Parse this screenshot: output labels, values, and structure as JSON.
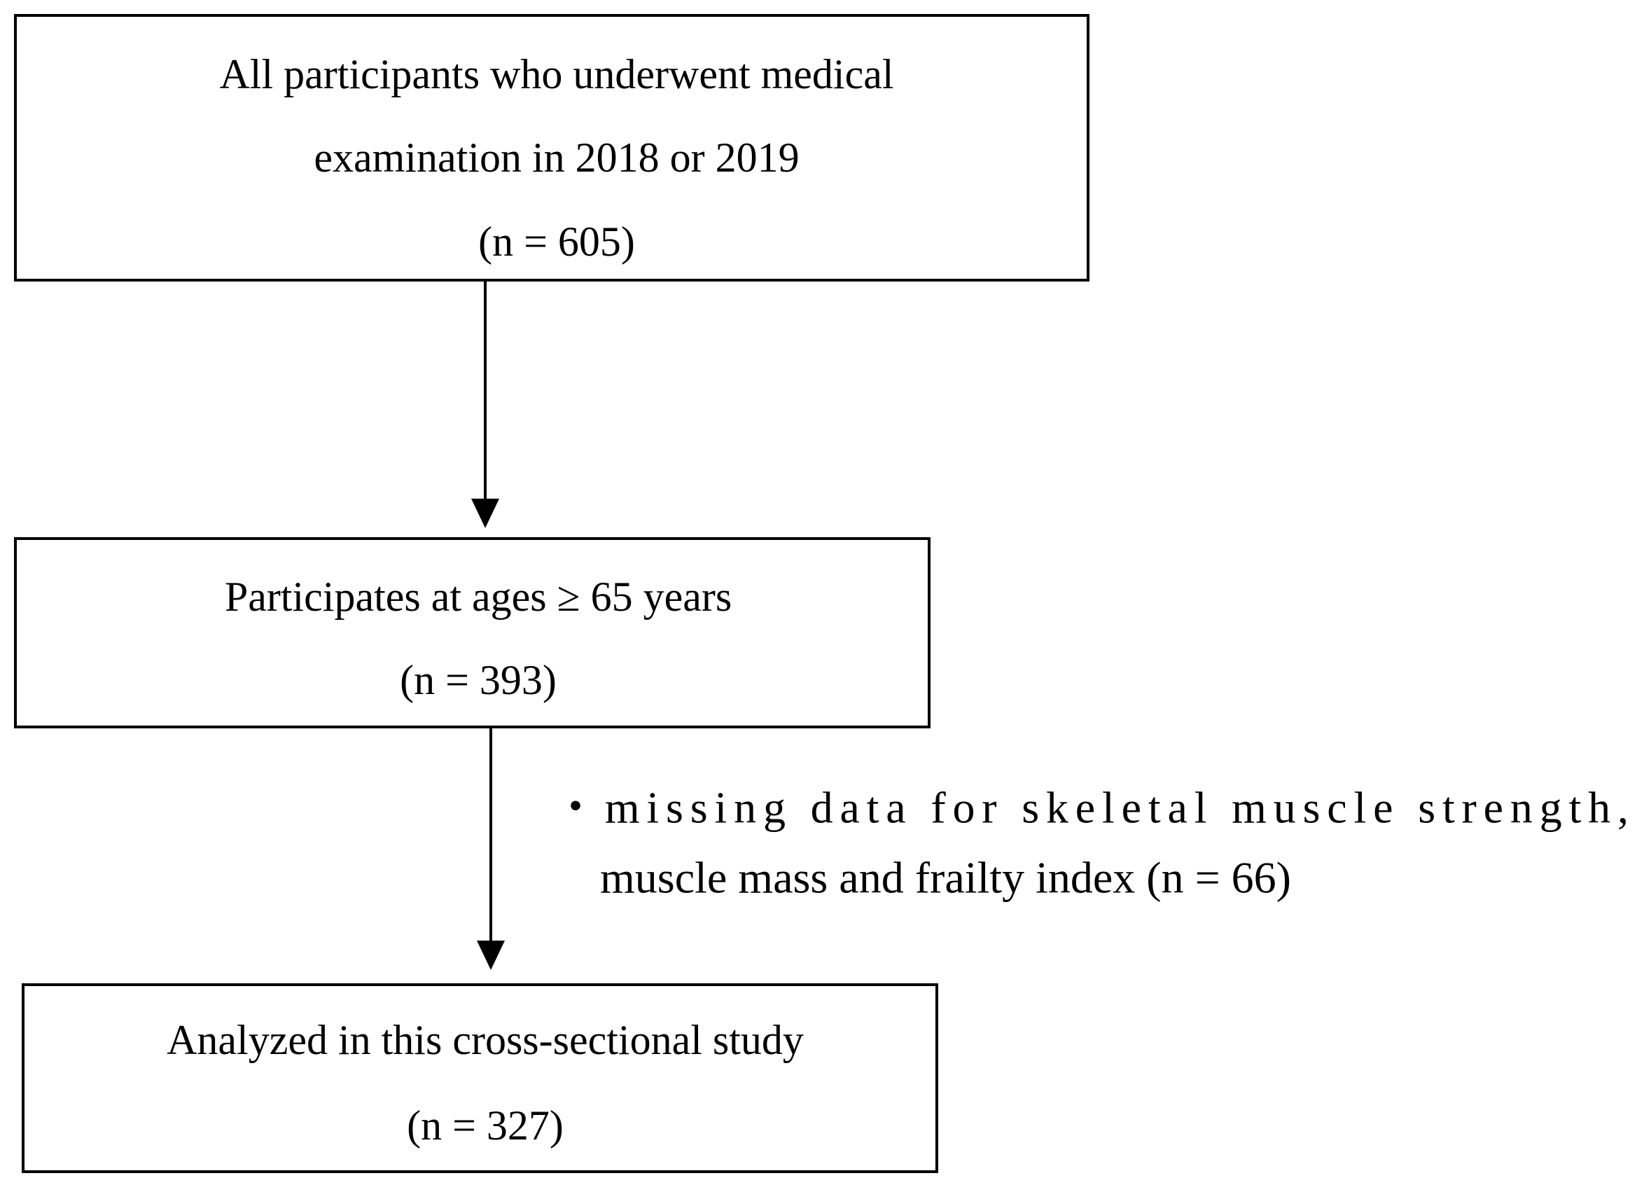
{
  "nodes": [
    {
      "lines": [
        "All participants who underwent medical",
        "examination in 2018 or 2019",
        "(n = 605)"
      ]
    },
    {
      "lines": [
        "Participates at ages ≥ 65 years",
        "(n = 393)"
      ]
    },
    {
      "lines": [
        "Analyzed in this cross-sectional study",
        "(n = 327)"
      ]
    }
  ],
  "exclusion": {
    "lines": [
      "・missing data for skeletal muscle strength,",
      "muscle mass and frailty index (n = 66)"
    ]
  }
}
